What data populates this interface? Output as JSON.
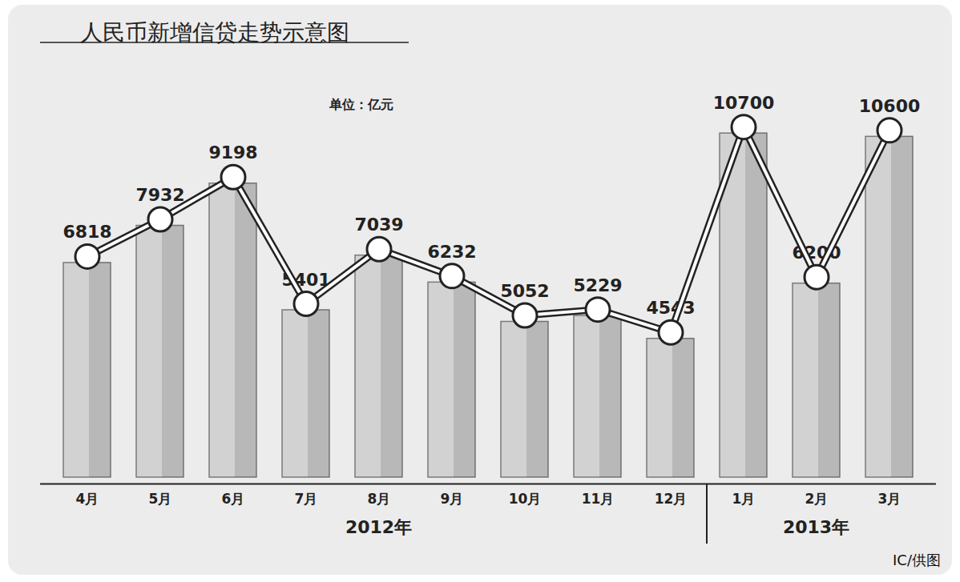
{
  "chart_data": {
    "type": "bar",
    "title": "人民币新增信贷走势示意图",
    "unit": "单位：亿元",
    "source": "IC/供图",
    "categories": [
      "4月",
      "5月",
      "6月",
      "7月",
      "8月",
      "9月",
      "10月",
      "11月",
      "12月",
      "1月",
      "2月",
      "3月"
    ],
    "year": [
      "2012年",
      "2012年",
      "2012年",
      "2012年",
      "2012年",
      "2012年",
      "2012年",
      "2012年",
      "2012年",
      "2013年",
      "2013年",
      "2013年"
    ],
    "series": [
      {
        "type": "bar",
        "color": "#d2d2d2",
        "values": [
          6818,
          7932,
          9198,
          5401,
          7039,
          6232,
          5052,
          5229,
          4543,
          10700,
          6200,
          10600
        ]
      },
      {
        "type": "line",
        "color": "#ffffff",
        "marker": "circle",
        "values": [
          6818,
          7932,
          9198,
          5401,
          7039,
          6232,
          5052,
          5229,
          4543,
          10700,
          6200,
          10600
        ]
      }
    ],
    "ylim": [
      0,
      12000
    ],
    "yticks": [],
    "tick_labels": "x",
    "data_labels": true
  }
}
